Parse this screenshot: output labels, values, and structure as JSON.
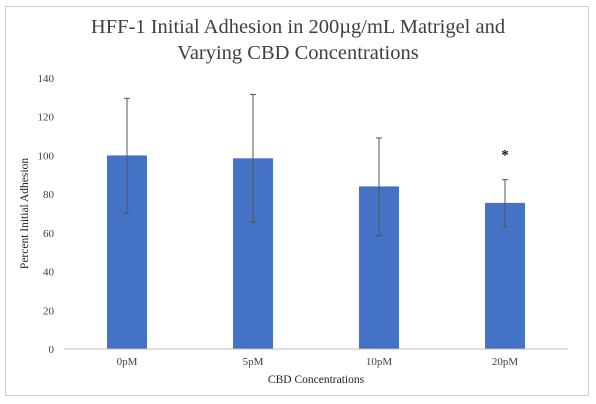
{
  "chart_data": {
    "type": "bar",
    "title_lines": [
      "HFF-1 Initial Adhesion in 200µg/mL Matrigel and",
      "Varying CBD Concentrations"
    ],
    "xlabel": "CBD Concentrations",
    "ylabel": "Percent Initial Adhesion",
    "categories": [
      "0pM",
      "5pM",
      "10pM",
      "20pM"
    ],
    "values": [
      100,
      98.5,
      84,
      75.5
    ],
    "error_low": [
      70,
      65.5,
      58.5,
      63
    ],
    "error_high": [
      129.5,
      131.5,
      109,
      87.5
    ],
    "ylim": [
      0,
      140
    ],
    "yticks": [
      "0",
      "20",
      "40",
      "60",
      "80",
      "100",
      "120",
      "140"
    ],
    "ytick_values": [
      0,
      20,
      40,
      60,
      80,
      100,
      120,
      140
    ],
    "annotations": [
      {
        "category": "20pM",
        "text": "*"
      }
    ],
    "bar_color": "#4472c4",
    "grid": false,
    "legend": "none"
  }
}
